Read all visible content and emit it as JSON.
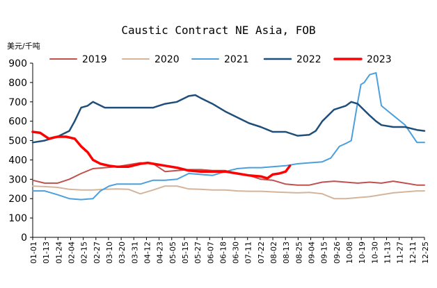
{
  "chart_data": {
    "type": "line",
    "title": "Caustic Contract NE Asia, FOB",
    "unit_label": "美元/千吨",
    "ylim": [
      0,
      900
    ],
    "yticks": [
      0,
      100,
      200,
      300,
      400,
      500,
      600,
      700,
      800,
      900
    ],
    "x_tick_labels": [
      "01-01",
      "01-13",
      "01-24",
      "02-04",
      "02-15",
      "02-27",
      "03-10",
      "03-20",
      "03-31",
      "04-12",
      "04-23",
      "05-05",
      "05-15",
      "05-27",
      "06-07",
      "06-18",
      "06-30",
      "07-11",
      "07-22",
      "08-02",
      "08-13",
      "08-25",
      "09-04",
      "09-15",
      "09-26",
      "10-08",
      "10-19",
      "10-30",
      "11-13",
      "11-27",
      "12-11",
      "12-25"
    ],
    "grid": false,
    "legend_position": "top",
    "series": [
      {
        "name": "2019",
        "color": "#c0504d",
        "width": 2,
        "x": [
          1,
          12,
          24,
          35,
          46,
          57,
          68,
          79,
          90,
          101,
          113,
          124,
          135,
          146,
          157,
          168,
          180,
          191,
          202,
          213,
          224,
          236,
          247,
          258,
          270,
          281,
          292,
          303,
          314,
          325,
          336,
          347,
          358,
          365
        ],
        "y": [
          295,
          280,
          280,
          300,
          330,
          355,
          360,
          365,
          375,
          385,
          380,
          340,
          345,
          350,
          350,
          345,
          345,
          330,
          320,
          300,
          295,
          275,
          270,
          270,
          285,
          290,
          285,
          280,
          285,
          280,
          290,
          280,
          270,
          270
        ]
      },
      {
        "name": "2020",
        "color": "#d4b49a",
        "width": 2,
        "x": [
          1,
          12,
          24,
          35,
          46,
          57,
          68,
          79,
          90,
          101,
          113,
          124,
          135,
          146,
          157,
          168,
          180,
          191,
          202,
          213,
          224,
          236,
          247,
          258,
          270,
          281,
          292,
          303,
          314,
          325,
          336,
          347,
          358,
          365
        ],
        "y": [
          265,
          262,
          258,
          248,
          245,
          245,
          248,
          250,
          248,
          225,
          245,
          265,
          265,
          250,
          248,
          245,
          245,
          240,
          238,
          238,
          235,
          232,
          230,
          232,
          225,
          200,
          200,
          205,
          210,
          220,
          230,
          235,
          240,
          240
        ]
      },
      {
        "name": "2021",
        "color": "#4a9fdc",
        "width": 2,
        "x": [
          1,
          12,
          24,
          35,
          46,
          57,
          64,
          72,
          79,
          90,
          101,
          113,
          124,
          135,
          146,
          157,
          168,
          180,
          191,
          202,
          213,
          224,
          236,
          247,
          258,
          270,
          278,
          286,
          292,
          297,
          303,
          306,
          309,
          314,
          320,
          325,
          336,
          347,
          358,
          365
        ],
        "y": [
          240,
          240,
          220,
          200,
          195,
          200,
          240,
          265,
          275,
          275,
          275,
          295,
          295,
          300,
          330,
          325,
          320,
          340,
          355,
          360,
          360,
          365,
          370,
          380,
          385,
          390,
          410,
          470,
          485,
          500,
          700,
          790,
          800,
          840,
          850,
          680,
          630,
          580,
          490,
          490
        ]
      },
      {
        "name": "2022",
        "color": "#1f4e79",
        "width": 2.5,
        "x": [
          1,
          12,
          24,
          35,
          40,
          46,
          52,
          57,
          68,
          79,
          90,
          101,
          113,
          124,
          135,
          146,
          152,
          157,
          168,
          180,
          191,
          202,
          213,
          224,
          236,
          247,
          258,
          264,
          270,
          281,
          292,
          297,
          303,
          314,
          320,
          325,
          336,
          347,
          358,
          365
        ],
        "y": [
          490,
          500,
          520,
          550,
          600,
          670,
          680,
          700,
          670,
          670,
          670,
          670,
          670,
          690,
          700,
          730,
          735,
          720,
          690,
          650,
          620,
          590,
          570,
          545,
          545,
          525,
          530,
          550,
          600,
          660,
          680,
          700,
          690,
          630,
          600,
          580,
          570,
          570,
          555,
          550
        ]
      },
      {
        "name": "2023",
        "color": "#ff0000",
        "width": 3.5,
        "x": [
          1,
          8,
          16,
          24,
          32,
          40,
          46,
          52,
          57,
          64,
          72,
          79,
          90,
          101,
          108,
          113,
          124,
          135,
          146,
          157,
          168,
          180,
          191,
          202,
          213,
          219,
          224,
          230,
          236,
          240
        ],
        "y": [
          545,
          540,
          510,
          520,
          520,
          510,
          470,
          440,
          400,
          380,
          370,
          365,
          365,
          380,
          385,
          380,
          370,
          360,
          345,
          340,
          340,
          340,
          330,
          320,
          315,
          305,
          325,
          330,
          340,
          370
        ]
      }
    ]
  }
}
